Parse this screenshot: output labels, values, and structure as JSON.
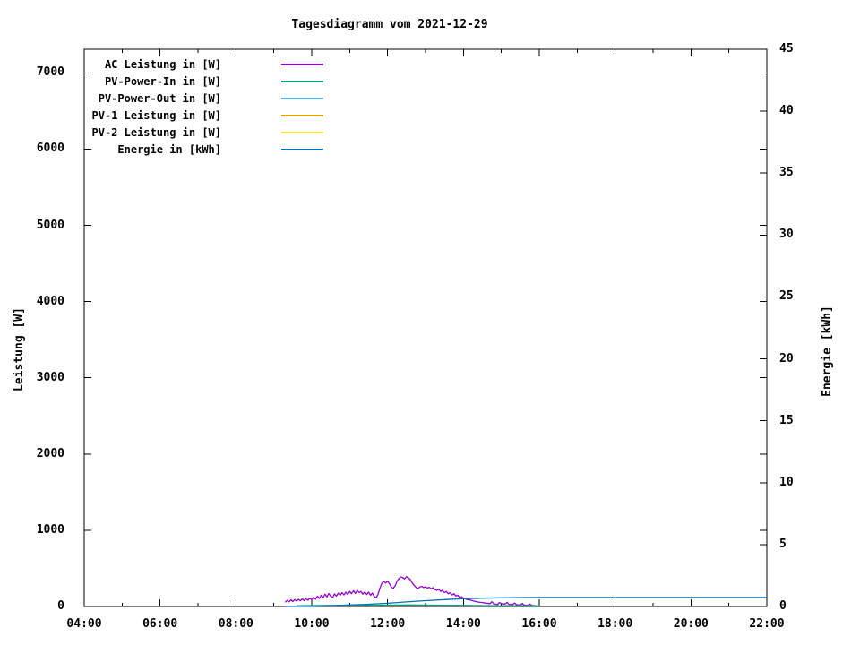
{
  "window": {
    "title": "Tagesdiagramm vom 2021-12-29",
    "background": "#ffffff",
    "foreground": "#000000"
  },
  "axes": {
    "y1_label": "Leistung [W]",
    "y2_label": "Energie [kWh]",
    "y1_tick_values": [
      0,
      1000,
      2000,
      3000,
      4000,
      5000,
      6000,
      7000
    ],
    "y1_tick_labels": [
      "0",
      "1000",
      "2000",
      "3000",
      "4000",
      "5000",
      "6000",
      "7000"
    ],
    "y2_tick_values": [
      0,
      5,
      10,
      15,
      20,
      25,
      30,
      35,
      40,
      45
    ],
    "y2_tick_labels": [
      "0",
      "5",
      "10",
      "15",
      "20",
      "25",
      "30",
      "35",
      "40",
      "45"
    ],
    "x_tick_hours": [
      4,
      6,
      8,
      10,
      12,
      14,
      16,
      18,
      20,
      22
    ],
    "x_tick_labels": [
      "04:00",
      "06:00",
      "08:00",
      "10:00",
      "12:00",
      "14:00",
      "16:00",
      "18:00",
      "20:00",
      "22:00"
    ],
    "x_minor_hours": [
      5,
      7,
      9,
      11,
      13,
      15,
      17,
      19,
      21
    ]
  },
  "chart_data": {
    "type": "line",
    "title": "Tagesdiagramm vom 2021-12-29",
    "xlabel": "",
    "ylabel": "Leistung [W]",
    "y2label": "Energie [kWh]",
    "x_range_hours": [
      4,
      22
    ],
    "y1_range": [
      0,
      7310
    ],
    "y1_labeled_max": 7000,
    "y2_range": [
      0,
      45
    ],
    "grid": "off",
    "legend_position": "top-left-inside",
    "series": [
      {
        "name": "AC Leistung in [W]",
        "color": "#9400D3",
        "axis": "y1",
        "points": [
          [
            9.3,
            55
          ],
          [
            9.35,
            80
          ],
          [
            9.4,
            60
          ],
          [
            9.45,
            88
          ],
          [
            9.5,
            65
          ],
          [
            9.55,
            92
          ],
          [
            9.6,
            70
          ],
          [
            9.65,
            95
          ],
          [
            9.7,
            75
          ],
          [
            9.75,
            100
          ],
          [
            9.8,
            78
          ],
          [
            9.85,
            105
          ],
          [
            9.9,
            82
          ],
          [
            9.95,
            108
          ],
          [
            10.0,
            90
          ],
          [
            10.05,
            118
          ],
          [
            10.1,
            95
          ],
          [
            10.15,
            135
          ],
          [
            10.2,
            105
          ],
          [
            10.25,
            150
          ],
          [
            10.3,
            115
          ],
          [
            10.35,
            162
          ],
          [
            10.4,
            125
          ],
          [
            10.45,
            170
          ],
          [
            10.5,
            135
          ],
          [
            10.55,
            118
          ],
          [
            10.6,
            165
          ],
          [
            10.65,
            138
          ],
          [
            10.7,
            175
          ],
          [
            10.75,
            148
          ],
          [
            10.8,
            182
          ],
          [
            10.85,
            152
          ],
          [
            10.9,
            188
          ],
          [
            10.95,
            158
          ],
          [
            11.0,
            198
          ],
          [
            11.05,
            168
          ],
          [
            11.1,
            208
          ],
          [
            11.15,
            172
          ],
          [
            11.2,
            212
          ],
          [
            11.25,
            182
          ],
          [
            11.3,
            198
          ],
          [
            11.35,
            162
          ],
          [
            11.4,
            192
          ],
          [
            11.45,
            158
          ],
          [
            11.5,
            188
          ],
          [
            11.55,
            148
          ],
          [
            11.6,
            175
          ],
          [
            11.65,
            128
          ],
          [
            11.7,
            118
          ],
          [
            11.75,
            162
          ],
          [
            11.8,
            245
          ],
          [
            11.85,
            305
          ],
          [
            11.9,
            330
          ],
          [
            11.95,
            308
          ],
          [
            12.0,
            335
          ],
          [
            12.05,
            298
          ],
          [
            12.1,
            252
          ],
          [
            12.15,
            238
          ],
          [
            12.2,
            272
          ],
          [
            12.25,
            332
          ],
          [
            12.3,
            368
          ],
          [
            12.35,
            388
          ],
          [
            12.4,
            378
          ],
          [
            12.45,
            362
          ],
          [
            12.5,
            392
          ],
          [
            12.55,
            375
          ],
          [
            12.6,
            352
          ],
          [
            12.65,
            308
          ],
          [
            12.7,
            278
          ],
          [
            12.75,
            252
          ],
          [
            12.8,
            232
          ],
          [
            12.85,
            255
          ],
          [
            12.9,
            265
          ],
          [
            12.95,
            248
          ],
          [
            13.0,
            258
          ],
          [
            13.05,
            242
          ],
          [
            13.1,
            252
          ],
          [
            13.15,
            232
          ],
          [
            13.2,
            248
          ],
          [
            13.25,
            222
          ],
          [
            13.3,
            212
          ],
          [
            13.35,
            228
          ],
          [
            13.4,
            198
          ],
          [
            13.45,
            212
          ],
          [
            13.5,
            182
          ],
          [
            13.55,
            198
          ],
          [
            13.6,
            168
          ],
          [
            13.65,
            182
          ],
          [
            13.7,
            152
          ],
          [
            13.75,
            168
          ],
          [
            13.8,
            138
          ],
          [
            13.85,
            148
          ],
          [
            13.9,
            118
          ],
          [
            13.95,
            128
          ],
          [
            14.0,
            108
          ],
          [
            14.1,
            92
          ],
          [
            14.2,
            82
          ],
          [
            14.3,
            68
          ],
          [
            14.4,
            58
          ],
          [
            14.5,
            52
          ],
          [
            14.6,
            44
          ],
          [
            14.7,
            38
          ],
          [
            14.75,
            62
          ],
          [
            14.8,
            34
          ],
          [
            14.9,
            28
          ],
          [
            14.95,
            52
          ],
          [
            15.0,
            38
          ],
          [
            15.1,
            32
          ],
          [
            15.15,
            55
          ],
          [
            15.2,
            28
          ],
          [
            15.3,
            26
          ],
          [
            15.35,
            46
          ],
          [
            15.4,
            24
          ],
          [
            15.5,
            20
          ],
          [
            15.55,
            40
          ],
          [
            15.6,
            18
          ],
          [
            15.7,
            16
          ],
          [
            15.75,
            32
          ],
          [
            15.8,
            14
          ],
          [
            15.9,
            10
          ],
          [
            16.0,
            6
          ]
        ]
      },
      {
        "name": "PV-Power-In in [W]",
        "color": "#009E73",
        "axis": "y1",
        "points": [
          [
            9.6,
            10
          ],
          [
            10.5,
            14
          ],
          [
            11.5,
            17
          ],
          [
            12.5,
            20
          ],
          [
            13.5,
            16
          ],
          [
            14.5,
            12
          ],
          [
            15.5,
            9
          ],
          [
            16.0,
            7
          ]
        ]
      },
      {
        "name": "PV-Power-Out in [W]",
        "color": "#56B4E9",
        "axis": "y1",
        "points": []
      },
      {
        "name": "PV-1 Leistung in [W]",
        "color": "#E69F00",
        "axis": "y1",
        "points": []
      },
      {
        "name": "PV-2 Leistung in [W]",
        "color": "#F0E442",
        "axis": "y1",
        "points": []
      },
      {
        "name": "Energie in [kWh]",
        "color": "#0072B2",
        "axis": "y2",
        "points": [
          [
            9.3,
            0
          ],
          [
            9.6,
            0.01
          ],
          [
            10.0,
            0.03
          ],
          [
            10.5,
            0.07
          ],
          [
            11.0,
            0.12
          ],
          [
            11.5,
            0.18
          ],
          [
            12.0,
            0.26
          ],
          [
            12.5,
            0.37
          ],
          [
            13.0,
            0.47
          ],
          [
            13.5,
            0.56
          ],
          [
            14.0,
            0.63
          ],
          [
            14.5,
            0.67
          ],
          [
            15.0,
            0.7
          ],
          [
            15.5,
            0.72
          ],
          [
            16.0,
            0.73
          ],
          [
            22.0,
            0.73
          ]
        ]
      }
    ]
  }
}
